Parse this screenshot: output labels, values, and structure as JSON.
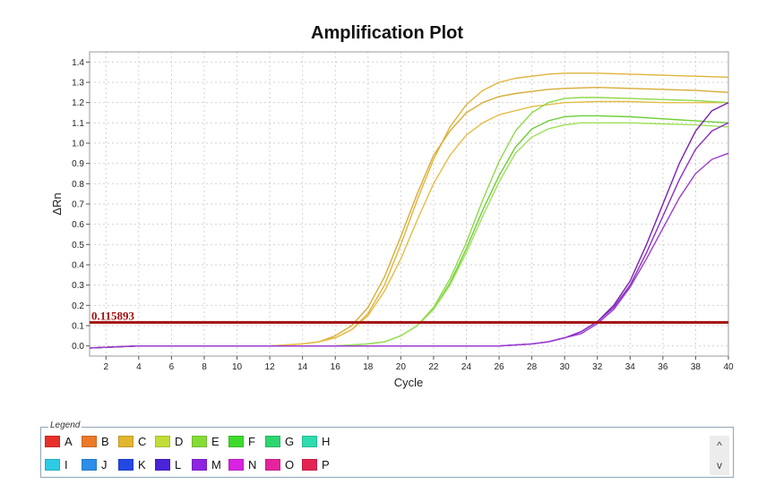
{
  "chart_data": {
    "type": "line",
    "title": "Amplification Plot",
    "xlabel": "Cycle",
    "ylabel": "ΔRn",
    "xlim": [
      1,
      40
    ],
    "ylim": [
      -0.05,
      1.45
    ],
    "xticks": [
      2,
      4,
      6,
      8,
      10,
      12,
      14,
      16,
      18,
      20,
      22,
      24,
      26,
      28,
      30,
      32,
      34,
      36,
      38,
      40
    ],
    "yticks": [
      0.0,
      0.1,
      0.2,
      0.3,
      0.4,
      0.5,
      0.6,
      0.7,
      0.8,
      0.9,
      1.0,
      1.1,
      1.2,
      1.3,
      1.4
    ],
    "xtick_labels": [
      "2",
      "4",
      "6",
      "8",
      "10",
      "12",
      "14",
      "16",
      "18",
      "20",
      "22",
      "24",
      "26",
      "28",
      "30",
      "32",
      "34",
      "36",
      "38",
      "40"
    ],
    "ytick_labels": [
      "0.0",
      "0.1",
      "0.2",
      "0.3",
      "0.4",
      "0.5",
      "0.6",
      "0.7",
      "0.8",
      "0.9",
      "1.0",
      "1.1",
      "1.2",
      "1.3",
      "1.4"
    ],
    "grid": true,
    "threshold": {
      "value": 0.115893,
      "label": "0.115893",
      "color": "#a31010"
    },
    "series": [
      {
        "color": "#e0b43a",
        "x": [
          1,
          4,
          8,
          12,
          14,
          15,
          16,
          17,
          18,
          19,
          20,
          21,
          22,
          23,
          24,
          25,
          26,
          27,
          28,
          29,
          30,
          32,
          34,
          36,
          38,
          40
        ],
        "y": [
          -0.01,
          0.0,
          0.0,
          0.0,
          0.01,
          0.02,
          0.04,
          0.08,
          0.16,
          0.3,
          0.5,
          0.72,
          0.92,
          1.08,
          1.19,
          1.26,
          1.3,
          1.32,
          1.33,
          1.34,
          1.345,
          1.345,
          1.34,
          1.335,
          1.33,
          1.325
        ]
      },
      {
        "color": "#d9ac38",
        "x": [
          1,
          4,
          8,
          12,
          14,
          15,
          16,
          17,
          18,
          19,
          20,
          21,
          22,
          23,
          24,
          25,
          26,
          27,
          28,
          29,
          30,
          32,
          34,
          36,
          38,
          40
        ],
        "y": [
          -0.01,
          0.0,
          0.0,
          0.0,
          0.01,
          0.02,
          0.05,
          0.1,
          0.19,
          0.34,
          0.54,
          0.75,
          0.94,
          1.06,
          1.15,
          1.2,
          1.23,
          1.245,
          1.255,
          1.265,
          1.27,
          1.275,
          1.27,
          1.265,
          1.26,
          1.25
        ]
      },
      {
        "color": "#e3bd48",
        "x": [
          1,
          4,
          8,
          12,
          14,
          15,
          16,
          17,
          18,
          19,
          20,
          21,
          22,
          23,
          24,
          25,
          26,
          27,
          28,
          29,
          30,
          32,
          34,
          36,
          38,
          40
        ],
        "y": [
          -0.01,
          0.0,
          0.0,
          0.0,
          0.01,
          0.02,
          0.04,
          0.08,
          0.15,
          0.27,
          0.43,
          0.62,
          0.8,
          0.94,
          1.04,
          1.1,
          1.14,
          1.16,
          1.18,
          1.19,
          1.2,
          1.205,
          1.205,
          1.2,
          1.2,
          1.2
        ]
      },
      {
        "color": "#8fd94a",
        "x": [
          1,
          4,
          8,
          12,
          16,
          18,
          19,
          20,
          21,
          22,
          23,
          24,
          25,
          26,
          27,
          28,
          29,
          30,
          31,
          32,
          34,
          36,
          38,
          40
        ],
        "y": [
          -0.01,
          0.0,
          0.0,
          0.0,
          0.0,
          0.01,
          0.02,
          0.05,
          0.1,
          0.19,
          0.33,
          0.51,
          0.72,
          0.91,
          1.06,
          1.15,
          1.2,
          1.22,
          1.225,
          1.225,
          1.22,
          1.215,
          1.21,
          1.2
        ]
      },
      {
        "color": "#6ccf36",
        "x": [
          1,
          4,
          8,
          12,
          16,
          18,
          19,
          20,
          21,
          22,
          23,
          24,
          25,
          26,
          27,
          28,
          29,
          30,
          31,
          32,
          34,
          36,
          38,
          40
        ],
        "y": [
          -0.01,
          0.0,
          0.0,
          0.0,
          0.0,
          0.01,
          0.02,
          0.05,
          0.1,
          0.18,
          0.31,
          0.48,
          0.67,
          0.84,
          0.98,
          1.07,
          1.11,
          1.13,
          1.135,
          1.135,
          1.13,
          1.12,
          1.11,
          1.1
        ]
      },
      {
        "color": "#9ee05a",
        "x": [
          1,
          4,
          8,
          12,
          16,
          18,
          19,
          20,
          21,
          22,
          23,
          24,
          25,
          26,
          27,
          28,
          29,
          30,
          31,
          32,
          34,
          36,
          38,
          40
        ],
        "y": [
          -0.01,
          0.0,
          0.0,
          0.0,
          0.0,
          0.01,
          0.02,
          0.05,
          0.1,
          0.18,
          0.3,
          0.46,
          0.64,
          0.81,
          0.95,
          1.03,
          1.07,
          1.09,
          1.1,
          1.1,
          1.1,
          1.095,
          1.09,
          1.08
        ]
      },
      {
        "color": "#7a1fb0",
        "x": [
          1,
          4,
          8,
          12,
          16,
          20,
          24,
          26,
          28,
          29,
          30,
          31,
          32,
          33,
          34,
          35,
          36,
          37,
          38,
          39,
          40
        ],
        "y": [
          -0.01,
          0.0,
          0.0,
          0.0,
          0.0,
          0.0,
          0.0,
          0.0,
          0.01,
          0.02,
          0.04,
          0.07,
          0.12,
          0.2,
          0.32,
          0.5,
          0.7,
          0.9,
          1.06,
          1.16,
          1.2
        ]
      },
      {
        "color": "#8a2ec4",
        "x": [
          1,
          4,
          8,
          12,
          16,
          20,
          24,
          26,
          28,
          29,
          30,
          31,
          32,
          33,
          34,
          35,
          36,
          37,
          38,
          39,
          40
        ],
        "y": [
          -0.01,
          0.0,
          0.0,
          0.0,
          0.0,
          0.0,
          0.0,
          0.0,
          0.01,
          0.02,
          0.04,
          0.07,
          0.12,
          0.19,
          0.3,
          0.46,
          0.64,
          0.82,
          0.97,
          1.06,
          1.1
        ]
      },
      {
        "color": "#9b3bd0",
        "x": [
          1,
          4,
          8,
          12,
          16,
          20,
          24,
          26,
          28,
          29,
          30,
          31,
          32,
          33,
          34,
          35,
          36,
          37,
          38,
          39,
          40
        ],
        "y": [
          -0.01,
          0.0,
          0.0,
          0.0,
          0.0,
          0.0,
          0.0,
          0.0,
          0.01,
          0.02,
          0.04,
          0.06,
          0.11,
          0.18,
          0.29,
          0.43,
          0.58,
          0.73,
          0.85,
          0.92,
          0.95
        ]
      }
    ]
  },
  "legend": {
    "title": "Legend",
    "items": [
      {
        "label": "A",
        "color": "#e8302a"
      },
      {
        "label": "B",
        "color": "#ec7a28"
      },
      {
        "label": "C",
        "color": "#e2b62e"
      },
      {
        "label": "D",
        "color": "#c2dd38"
      },
      {
        "label": "E",
        "color": "#86dc36"
      },
      {
        "label": "F",
        "color": "#3edb2c"
      },
      {
        "label": "G",
        "color": "#2ed670"
      },
      {
        "label": "H",
        "color": "#2edcb0"
      },
      {
        "label": "I",
        "color": "#2ecbe6"
      },
      {
        "label": "J",
        "color": "#2c8ee8"
      },
      {
        "label": "K",
        "color": "#2448e4"
      },
      {
        "label": "L",
        "color": "#4a22d8"
      },
      {
        "label": "M",
        "color": "#8e24e0"
      },
      {
        "label": "N",
        "color": "#d824e0"
      },
      {
        "label": "O",
        "color": "#e4249c"
      },
      {
        "label": "P",
        "color": "#e42452"
      }
    ],
    "scroll_up_icon": "chevron-up-icon",
    "scroll_down_icon": "chevron-down-icon",
    "scroll_up": "^",
    "scroll_down": "v"
  }
}
